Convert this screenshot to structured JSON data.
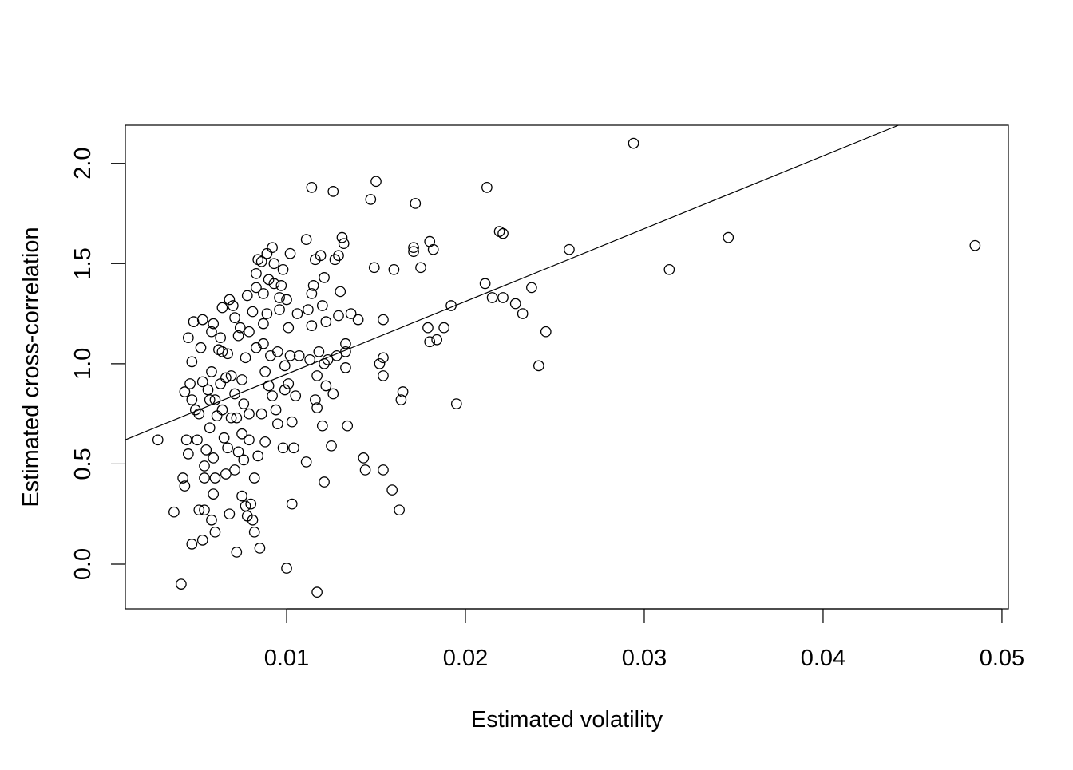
{
  "chart_data": {
    "type": "scatter",
    "title": "",
    "xlabel": "Estimated volatility",
    "ylabel": "Estimated cross-correlation",
    "xlim": [
      0.00098,
      0.05036
    ],
    "ylim": [
      -0.223,
      2.19
    ],
    "xticks": [
      0.01,
      0.02,
      0.03,
      0.04,
      0.05
    ],
    "xtick_labels": [
      "0.01",
      "0.02",
      "0.03",
      "0.04",
      "0.05"
    ],
    "yticks": [
      0.0,
      0.5,
      1.0,
      1.5,
      2.0
    ],
    "ytick_labels": [
      "0.0",
      "0.5",
      "1.0",
      "1.5",
      "2.0"
    ],
    "grid": false,
    "marker": "open-circle",
    "regression_line": {
      "intercept": 0.585,
      "slope": 36.3
    },
    "points": [
      [
        0.0028,
        0.62
      ],
      [
        0.0037,
        0.26
      ],
      [
        0.0041,
        -0.1
      ],
      [
        0.0042,
        0.43
      ],
      [
        0.0043,
        0.39
      ],
      [
        0.0044,
        0.62
      ],
      [
        0.0045,
        0.55
      ],
      [
        0.0045,
        1.13
      ],
      [
        0.0047,
        0.1
      ],
      [
        0.0048,
        1.21
      ],
      [
        0.0047,
        1.01
      ],
      [
        0.0043,
        0.86
      ],
      [
        0.0046,
        0.9
      ],
      [
        0.0047,
        0.82
      ],
      [
        0.0049,
        0.77
      ],
      [
        0.005,
        0.62
      ],
      [
        0.0051,
        0.75
      ],
      [
        0.0051,
        0.27
      ],
      [
        0.0052,
        1.08
      ],
      [
        0.0053,
        1.22
      ],
      [
        0.0053,
        0.91
      ],
      [
        0.0053,
        0.12
      ],
      [
        0.0054,
        0.27
      ],
      [
        0.0054,
        0.43
      ],
      [
        0.0054,
        0.49
      ],
      [
        0.0055,
        0.57
      ],
      [
        0.0056,
        0.87
      ],
      [
        0.0057,
        0.82
      ],
      [
        0.0057,
        0.68
      ],
      [
        0.0058,
        1.16
      ],
      [
        0.0058,
        0.96
      ],
      [
        0.0059,
        1.2
      ],
      [
        0.0059,
        0.53
      ],
      [
        0.0058,
        0.22
      ],
      [
        0.0059,
        0.35
      ],
      [
        0.006,
        0.43
      ],
      [
        0.006,
        0.16
      ],
      [
        0.006,
        0.82
      ],
      [
        0.0061,
        0.74
      ],
      [
        0.0062,
        1.07
      ],
      [
        0.0063,
        0.9
      ],
      [
        0.0063,
        1.13
      ],
      [
        0.0064,
        1.06
      ],
      [
        0.0064,
        1.28
      ],
      [
        0.0064,
        0.77
      ],
      [
        0.0065,
        0.63
      ],
      [
        0.0066,
        0.93
      ],
      [
        0.0066,
        0.45
      ],
      [
        0.0067,
        0.58
      ],
      [
        0.0067,
        1.05
      ],
      [
        0.0068,
        0.25
      ],
      [
        0.0068,
        1.32
      ],
      [
        0.0069,
        0.73
      ],
      [
        0.0069,
        0.94
      ],
      [
        0.007,
        1.29
      ],
      [
        0.0071,
        0.85
      ],
      [
        0.0071,
        1.23
      ],
      [
        0.0071,
        0.47
      ],
      [
        0.0072,
        0.06
      ],
      [
        0.0072,
        0.73
      ],
      [
        0.0073,
        1.14
      ],
      [
        0.0073,
        0.56
      ],
      [
        0.0074,
        1.18
      ],
      [
        0.0075,
        0.65
      ],
      [
        0.0075,
        0.92
      ],
      [
        0.0075,
        0.34
      ],
      [
        0.0076,
        0.52
      ],
      [
        0.0076,
        0.8
      ],
      [
        0.0077,
        0.29
      ],
      [
        0.0077,
        1.03
      ],
      [
        0.0078,
        1.34
      ],
      [
        0.0078,
        0.24
      ],
      [
        0.0079,
        0.62
      ],
      [
        0.0079,
        1.16
      ],
      [
        0.0079,
        0.75
      ],
      [
        0.008,
        0.3
      ],
      [
        0.0081,
        1.26
      ],
      [
        0.0081,
        0.22
      ],
      [
        0.0082,
        0.43
      ],
      [
        0.0082,
        0.16
      ],
      [
        0.0083,
        1.38
      ],
      [
        0.0083,
        1.45
      ],
      [
        0.0083,
        1.08
      ],
      [
        0.0084,
        1.52
      ],
      [
        0.0084,
        0.54
      ],
      [
        0.0085,
        0.08
      ],
      [
        0.0086,
        0.75
      ],
      [
        0.0086,
        1.51
      ],
      [
        0.0087,
        1.35
      ],
      [
        0.0087,
        1.2
      ],
      [
        0.0087,
        1.1
      ],
      [
        0.0088,
        0.96
      ],
      [
        0.0088,
        0.61
      ],
      [
        0.0089,
        1.55
      ],
      [
        0.0089,
        1.25
      ],
      [
        0.009,
        0.89
      ],
      [
        0.009,
        1.42
      ],
      [
        0.0091,
        1.04
      ],
      [
        0.0092,
        1.58
      ],
      [
        0.0092,
        0.84
      ],
      [
        0.0093,
        1.5
      ],
      [
        0.0093,
        1.4
      ],
      [
        0.0094,
        0.77
      ],
      [
        0.0095,
        0.7
      ],
      [
        0.0095,
        1.06
      ],
      [
        0.0096,
        1.33
      ],
      [
        0.0096,
        1.27
      ],
      [
        0.0097,
        1.39
      ],
      [
        0.0098,
        1.47
      ],
      [
        0.0098,
        0.58
      ],
      [
        0.0099,
        0.87
      ],
      [
        0.0099,
        0.99
      ],
      [
        0.01,
        1.32
      ],
      [
        0.01,
        -0.02
      ],
      [
        0.0101,
        1.18
      ],
      [
        0.0101,
        0.9
      ],
      [
        0.0102,
        1.04
      ],
      [
        0.0102,
        1.55
      ],
      [
        0.0103,
        0.71
      ],
      [
        0.0103,
        0.3
      ],
      [
        0.0104,
        0.58
      ],
      [
        0.0105,
        0.84
      ],
      [
        0.0106,
        1.25
      ],
      [
        0.0107,
        1.04
      ],
      [
        0.0111,
        1.62
      ],
      [
        0.0111,
        0.51
      ],
      [
        0.0112,
        1.27
      ],
      [
        0.0113,
        1.02
      ],
      [
        0.0114,
        1.35
      ],
      [
        0.0114,
        1.88
      ],
      [
        0.0114,
        1.19
      ],
      [
        0.0115,
        1.39
      ],
      [
        0.0116,
        1.52
      ],
      [
        0.0116,
        0.82
      ],
      [
        0.0117,
        -0.14
      ],
      [
        0.0117,
        0.78
      ],
      [
        0.0117,
        0.94
      ],
      [
        0.0118,
        1.06
      ],
      [
        0.0119,
        1.54
      ],
      [
        0.012,
        1.29
      ],
      [
        0.012,
        0.69
      ],
      [
        0.0121,
        1.0
      ],
      [
        0.0121,
        0.41
      ],
      [
        0.0121,
        1.43
      ],
      [
        0.0122,
        1.21
      ],
      [
        0.0122,
        0.89
      ],
      [
        0.0123,
        1.02
      ],
      [
        0.0125,
        0.59
      ],
      [
        0.0126,
        1.86
      ],
      [
        0.0126,
        0.85
      ],
      [
        0.0127,
        1.52
      ],
      [
        0.0128,
        1.04
      ],
      [
        0.0129,
        1.24
      ],
      [
        0.0129,
        1.54
      ],
      [
        0.013,
        1.36
      ],
      [
        0.0131,
        1.63
      ],
      [
        0.0132,
        1.6
      ],
      [
        0.0133,
        1.06
      ],
      [
        0.0133,
        0.98
      ],
      [
        0.0133,
        1.1
      ],
      [
        0.0134,
        0.69
      ],
      [
        0.0136,
        1.25
      ],
      [
        0.014,
        1.22
      ],
      [
        0.0143,
        0.53
      ],
      [
        0.0144,
        0.47
      ],
      [
        0.0147,
        1.82
      ],
      [
        0.0149,
        1.48
      ],
      [
        0.015,
        1.91
      ],
      [
        0.0152,
        1.0
      ],
      [
        0.0154,
        1.22
      ],
      [
        0.0154,
        1.03
      ],
      [
        0.0154,
        0.94
      ],
      [
        0.0154,
        0.47
      ],
      [
        0.0159,
        0.37
      ],
      [
        0.016,
        1.47
      ],
      [
        0.0163,
        0.27
      ],
      [
        0.0164,
        0.82
      ],
      [
        0.0165,
        0.86
      ],
      [
        0.0171,
        1.58
      ],
      [
        0.0171,
        1.56
      ],
      [
        0.0172,
        1.8
      ],
      [
        0.0175,
        1.48
      ],
      [
        0.0179,
        1.18
      ],
      [
        0.018,
        1.61
      ],
      [
        0.018,
        1.11
      ],
      [
        0.0182,
        1.57
      ],
      [
        0.0184,
        1.12
      ],
      [
        0.0188,
        1.18
      ],
      [
        0.0192,
        1.29
      ],
      [
        0.0195,
        0.8
      ],
      [
        0.0211,
        1.4
      ],
      [
        0.0212,
        1.88
      ],
      [
        0.0215,
        1.33
      ],
      [
        0.0219,
        1.66
      ],
      [
        0.0221,
        1.65
      ],
      [
        0.0221,
        1.33
      ],
      [
        0.0228,
        1.3
      ],
      [
        0.0232,
        1.25
      ],
      [
        0.0237,
        1.38
      ],
      [
        0.0241,
        0.99
      ],
      [
        0.0245,
        1.16
      ],
      [
        0.0258,
        1.57
      ],
      [
        0.0294,
        2.1
      ],
      [
        0.0314,
        1.47
      ],
      [
        0.0347,
        1.63
      ],
      [
        0.0485,
        1.59
      ]
    ]
  }
}
